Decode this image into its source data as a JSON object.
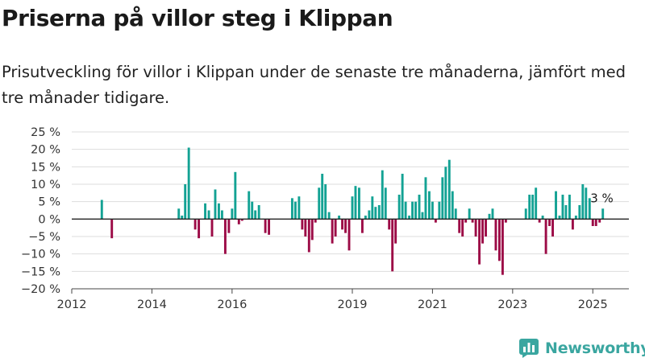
{
  "title": "Priserna på villor steg i Klippan",
  "subtitle": "Prisutveckling för villor i Klippan under de senaste tre månaderna, jämfört med tre månader tidigare.",
  "brand": {
    "name": "Newsworthy",
    "logo_icon": "bar-chart-icon"
  },
  "colors": {
    "positive": "#13a294",
    "negative": "#9c0b46",
    "grid": "#dddddd",
    "zero": "#222222",
    "brand": "#3aa6a0"
  },
  "chart_data": {
    "type": "bar",
    "y_unit": "%",
    "ylim": [
      -20,
      25
    ],
    "yticks": [
      {
        "value": 25,
        "label": "25 %"
      },
      {
        "value": 20,
        "label": "20 %"
      },
      {
        "value": 15,
        "label": "15 %"
      },
      {
        "value": 10,
        "label": "10 %"
      },
      {
        "value": 5,
        "label": "5 %"
      },
      {
        "value": 0,
        "label": "0 %"
      },
      {
        "value": -5,
        "label": "−5 %"
      },
      {
        "value": -10,
        "label": "−10 %"
      },
      {
        "value": -15,
        "label": "−15 %"
      },
      {
        "value": -20,
        "label": "−20 %"
      }
    ],
    "xlim": [
      2012,
      2025.9
    ],
    "xticks": [
      {
        "value": 2012,
        "label": "2012"
      },
      {
        "value": 2014,
        "label": "2014"
      },
      {
        "value": 2016,
        "label": "2016"
      },
      {
        "value": 2019,
        "label": "2019"
      },
      {
        "value": 2021,
        "label": "2021"
      },
      {
        "value": 2023,
        "label": "2023"
      },
      {
        "value": 2025,
        "label": "2025"
      }
    ],
    "grid": true,
    "annotation": {
      "x": 2025.0,
      "y": 3,
      "label": "3 %"
    },
    "bars": [
      {
        "x": 2012.75,
        "y": 5.5
      },
      {
        "x": 2013.0,
        "y": -5.5
      },
      {
        "x": 2014.67,
        "y": 3
      },
      {
        "x": 2014.75,
        "y": 1
      },
      {
        "x": 2014.83,
        "y": 10
      },
      {
        "x": 2014.92,
        "y": 20.5
      },
      {
        "x": 2015.08,
        "y": -3
      },
      {
        "x": 2015.17,
        "y": -5.5
      },
      {
        "x": 2015.33,
        "y": 4.5
      },
      {
        "x": 2015.42,
        "y": 2.5
      },
      {
        "x": 2015.5,
        "y": -5
      },
      {
        "x": 2015.58,
        "y": 8.5
      },
      {
        "x": 2015.67,
        "y": 4.5
      },
      {
        "x": 2015.75,
        "y": 2.5
      },
      {
        "x": 2015.83,
        "y": -10
      },
      {
        "x": 2015.92,
        "y": -4
      },
      {
        "x": 2016.0,
        "y": 3
      },
      {
        "x": 2016.08,
        "y": 13.5
      },
      {
        "x": 2016.17,
        "y": -1.5
      },
      {
        "x": 2016.25,
        "y": -0.5
      },
      {
        "x": 2016.42,
        "y": 8
      },
      {
        "x": 2016.5,
        "y": 5
      },
      {
        "x": 2016.58,
        "y": 2.5
      },
      {
        "x": 2016.67,
        "y": 4
      },
      {
        "x": 2016.83,
        "y": -4
      },
      {
        "x": 2016.92,
        "y": -4.5
      },
      {
        "x": 2017.5,
        "y": 6
      },
      {
        "x": 2017.58,
        "y": 5
      },
      {
        "x": 2017.67,
        "y": 6.5
      },
      {
        "x": 2017.75,
        "y": -3
      },
      {
        "x": 2017.83,
        "y": -5
      },
      {
        "x": 2017.92,
        "y": -9.5
      },
      {
        "x": 2018.0,
        "y": -6
      },
      {
        "x": 2018.08,
        "y": -1
      },
      {
        "x": 2018.17,
        "y": 9
      },
      {
        "x": 2018.25,
        "y": 13
      },
      {
        "x": 2018.33,
        "y": 10
      },
      {
        "x": 2018.42,
        "y": 2
      },
      {
        "x": 2018.5,
        "y": -7
      },
      {
        "x": 2018.58,
        "y": -5
      },
      {
        "x": 2018.67,
        "y": 1
      },
      {
        "x": 2018.75,
        "y": -3
      },
      {
        "x": 2018.83,
        "y": -4
      },
      {
        "x": 2018.92,
        "y": -9
      },
      {
        "x": 2019.0,
        "y": 6.5
      },
      {
        "x": 2019.08,
        "y": 9.5
      },
      {
        "x": 2019.17,
        "y": 9
      },
      {
        "x": 2019.25,
        "y": -4
      },
      {
        "x": 2019.33,
        "y": 1
      },
      {
        "x": 2019.42,
        "y": 2.5
      },
      {
        "x": 2019.5,
        "y": 6.5
      },
      {
        "x": 2019.58,
        "y": 3.5
      },
      {
        "x": 2019.67,
        "y": 4
      },
      {
        "x": 2019.75,
        "y": 14
      },
      {
        "x": 2019.83,
        "y": 9
      },
      {
        "x": 2019.92,
        "y": -3
      },
      {
        "x": 2020.0,
        "y": -15
      },
      {
        "x": 2020.08,
        "y": -7
      },
      {
        "x": 2020.17,
        "y": 7
      },
      {
        "x": 2020.25,
        "y": 13
      },
      {
        "x": 2020.33,
        "y": 5
      },
      {
        "x": 2020.42,
        "y": 1
      },
      {
        "x": 2020.5,
        "y": 5
      },
      {
        "x": 2020.58,
        "y": 5
      },
      {
        "x": 2020.67,
        "y": 7
      },
      {
        "x": 2020.75,
        "y": 2
      },
      {
        "x": 2020.83,
        "y": 12
      },
      {
        "x": 2020.92,
        "y": 8
      },
      {
        "x": 2021.0,
        "y": 5
      },
      {
        "x": 2021.08,
        "y": -1
      },
      {
        "x": 2021.17,
        "y": 5
      },
      {
        "x": 2021.25,
        "y": 12
      },
      {
        "x": 2021.33,
        "y": 15
      },
      {
        "x": 2021.42,
        "y": 17
      },
      {
        "x": 2021.5,
        "y": 8
      },
      {
        "x": 2021.58,
        "y": 3
      },
      {
        "x": 2021.67,
        "y": -4
      },
      {
        "x": 2021.75,
        "y": -5
      },
      {
        "x": 2021.83,
        "y": -1
      },
      {
        "x": 2021.92,
        "y": 3
      },
      {
        "x": 2022.0,
        "y": -1
      },
      {
        "x": 2022.08,
        "y": -5
      },
      {
        "x": 2022.17,
        "y": -13
      },
      {
        "x": 2022.25,
        "y": -7
      },
      {
        "x": 2022.33,
        "y": -5
      },
      {
        "x": 2022.42,
        "y": 1.5
      },
      {
        "x": 2022.5,
        "y": 3
      },
      {
        "x": 2022.58,
        "y": -9
      },
      {
        "x": 2022.67,
        "y": -12
      },
      {
        "x": 2022.75,
        "y": -16
      },
      {
        "x": 2022.83,
        "y": -1
      },
      {
        "x": 2023.33,
        "y": 3
      },
      {
        "x": 2023.42,
        "y": 7
      },
      {
        "x": 2023.5,
        "y": 7
      },
      {
        "x": 2023.58,
        "y": 9
      },
      {
        "x": 2023.67,
        "y": -1
      },
      {
        "x": 2023.75,
        "y": 1
      },
      {
        "x": 2023.83,
        "y": -10
      },
      {
        "x": 2023.92,
        "y": -2
      },
      {
        "x": 2024.0,
        "y": -5
      },
      {
        "x": 2024.08,
        "y": 8
      },
      {
        "x": 2024.17,
        "y": 1
      },
      {
        "x": 2024.25,
        "y": 7
      },
      {
        "x": 2024.33,
        "y": 4
      },
      {
        "x": 2024.42,
        "y": 7
      },
      {
        "x": 2024.5,
        "y": -3
      },
      {
        "x": 2024.58,
        "y": 1
      },
      {
        "x": 2024.67,
        "y": 4
      },
      {
        "x": 2024.75,
        "y": 10
      },
      {
        "x": 2024.83,
        "y": 9
      },
      {
        "x": 2024.92,
        "y": 6
      },
      {
        "x": 2025.0,
        "y": -2
      },
      {
        "x": 2025.08,
        "y": -2
      },
      {
        "x": 2025.17,
        "y": -1
      },
      {
        "x": 2025.25,
        "y": 3
      }
    ]
  }
}
